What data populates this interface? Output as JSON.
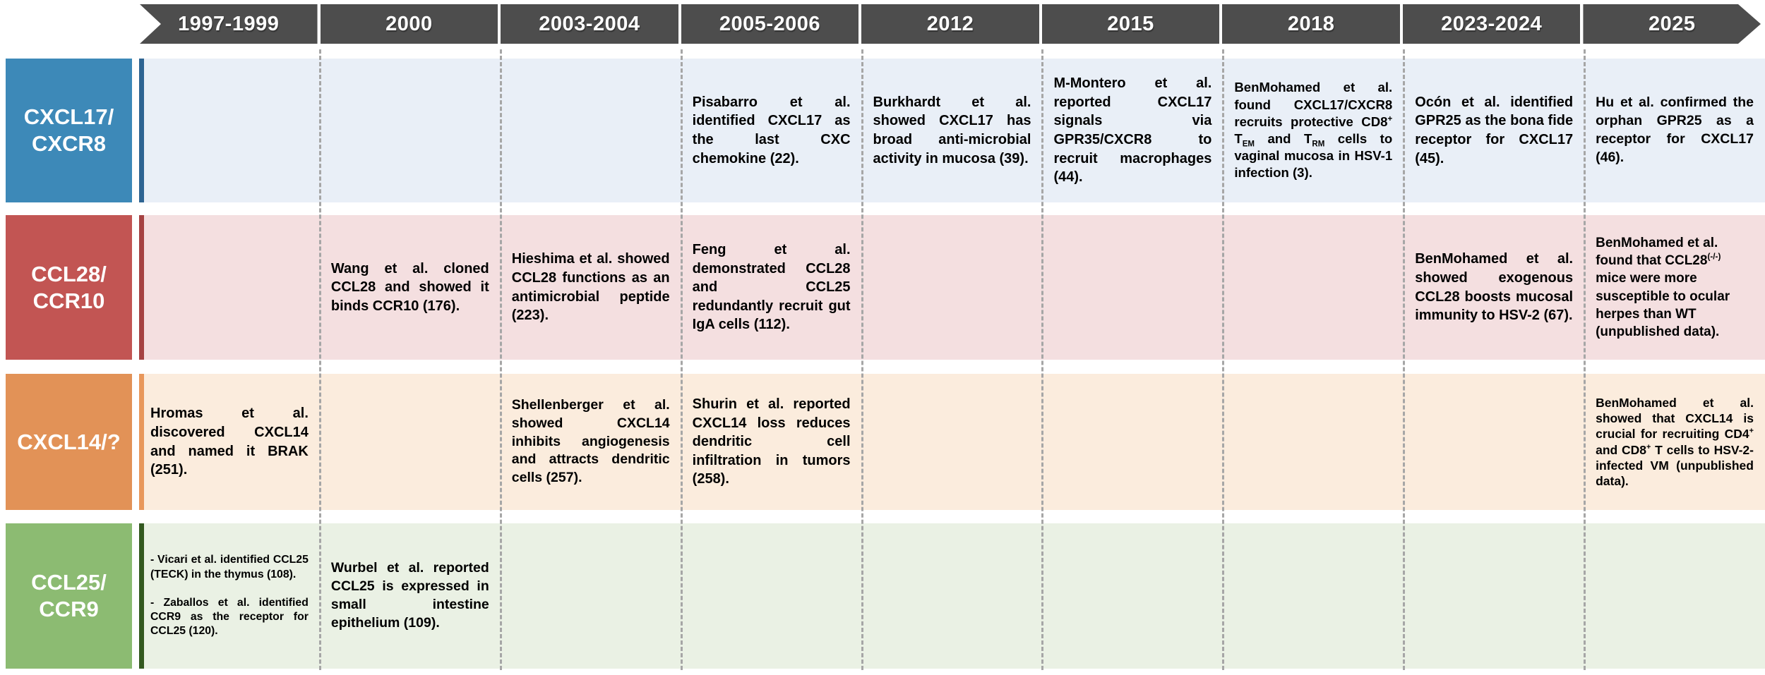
{
  "timeline": {
    "periods": [
      "1997-1999",
      "2000",
      "2003-2004",
      "2005-2006",
      "2012",
      "2015",
      "2018",
      "2023-2024",
      "2025"
    ]
  },
  "colors": {
    "header": "#4d4d4d",
    "separator": "#a6a6a6",
    "background": "#ffffff"
  },
  "rows": [
    {
      "id": "cxcl17-cxcr8",
      "label": "CXCL17/CXCR8",
      "label_html": "CXCL17/<br>CXCR8",
      "colors": {
        "label": "#3d89b8",
        "accent": "#2e6492",
        "band": "#e9eff7"
      },
      "entries": [
        {
          "period": "2005-2006",
          "html": "Pisabarro et al. identified CXCL17 as the last CXC chemokine (22)."
        },
        {
          "period": "2012",
          "html": "Burkhardt et al. showed CXCL17 has broad anti-microbial activity in mucosa (39)."
        },
        {
          "period": "2015",
          "html": "M-Montero et al. reported CXCL17 signals via GPR35/CXCR8 to recruit macrophages (44)."
        },
        {
          "period": "2018",
          "html": "BenMohamed et al. found CXCL17/CXCR8 recruits protective CD8<sup>+</sup> T<sub>EM</sub> and T<sub>RM</sub> cells to vaginal mucosa in HSV-1 infection (3)."
        },
        {
          "period": "2023-2024",
          "html": "Ocón et al. identified GPR25 as the bona fide receptor for CXCL17 (45)."
        },
        {
          "period": "2025",
          "html": "Hu et al. confirmed the orphan GPR25 as a receptor for CXCL17 (46)."
        }
      ]
    },
    {
      "id": "ccl28-ccr10",
      "label": "CCL28/CCR10",
      "label_html": "CCL28/<br>CCR10",
      "colors": {
        "label": "#c25553",
        "accent": "#a54242",
        "band": "#f4dfe0"
      },
      "entries": [
        {
          "period": "2000",
          "html": "Wang et al. cloned CCL28 and showed it binds CCR10 (176)."
        },
        {
          "period": "2003-2004",
          "html": "Hieshima et al. showed CCL28 functions as an antimicrobial peptide (223)."
        },
        {
          "period": "2005-2006",
          "html": "Feng et al. demonstrated CCL28 and CCL25 redundantly recruit gut IgA cells (112)."
        },
        {
          "period": "2023-2024",
          "html": "BenMohamed et al. showed exogenous CCL28 boosts mucosal immunity to HSV-2 (67)."
        },
        {
          "period": "2025",
          "html": "BenMohamed et al. found that CCL28<sup>(-/-)</sup> mice were more susceptible to ocular herpes than WT (unpublished data)."
        }
      ]
    },
    {
      "id": "cxcl14-unknown",
      "label": "CXCL14/?",
      "label_html": "CXCL14/?",
      "colors": {
        "label": "#e29257",
        "accent": "#e8975b",
        "band": "#fbecdd"
      },
      "entries": [
        {
          "period": "1997-1999",
          "html": "Hromas et al. discovered CXCL14 and named it BRAK (251)."
        },
        {
          "period": "2003-2004",
          "html": "Shellenberger et al. showed CXCL14 inhibits angiogenesis and attracts dendritic cells (257)."
        },
        {
          "period": "2005-2006",
          "html": "Shurin et al. reported CXCL14 loss reduces dendritic cell infiltration in tumors (258)."
        },
        {
          "period": "2025",
          "html": "BenMohamed et al. showed that CXCL14 is crucial for recruiting CD4<sup>+</sup> and CD8<sup>+</sup> T cells to HSV-2-infected VM (unpublished data)."
        }
      ]
    },
    {
      "id": "ccl25-ccr9",
      "label": "CCL25/CCR9",
      "label_html": "CCL25/<br>CCR9",
      "colors": {
        "label": "#8cbb72",
        "accent": "#33591f",
        "band": "#eaf1e4"
      },
      "entries": [
        {
          "period": "1997-1999",
          "html": "- Vicari et al. identified CCL25 (TECK) in the thymus (108).<br><br>- Zaballos et al. identified CCR9 as the receptor for CCL25 (120)."
        },
        {
          "period": "2000",
          "html": "Wurbel et al. reported CCL25 is expressed in small intestine epithelium (109)."
        }
      ]
    }
  ]
}
